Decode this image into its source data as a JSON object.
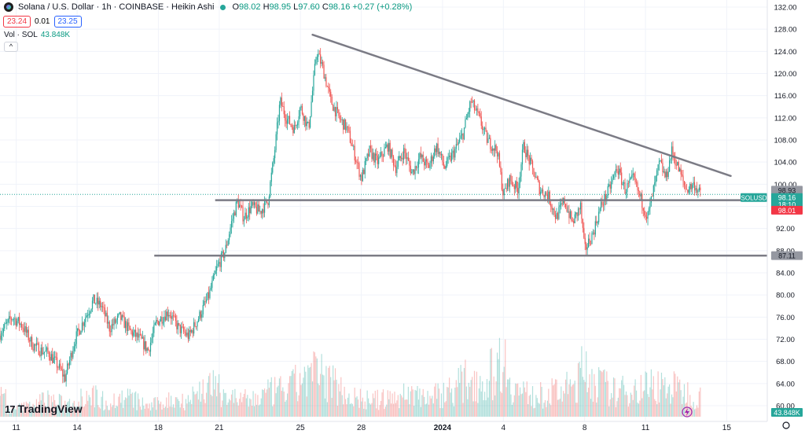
{
  "header": {
    "symbol_title": "Solana / U.S. Dollar · 1h · COINBASE · Heikin Ashi",
    "ohlc": [
      {
        "k": "O",
        "v": "98.02"
      },
      {
        "k": "H",
        "v": "98.95"
      },
      {
        "k": "L",
        "v": "97.60"
      },
      {
        "k": "C",
        "v": "98.16"
      }
    ],
    "change": "+0.27 (+0.28%)",
    "sell_price": "23.24",
    "spread": "0.01",
    "buy_price": "23.25",
    "volume_label": "Vol · SOL",
    "volume_value": "43.848K",
    "collapse_glyph": "^",
    "brand": "TradingView",
    "brand_mark": "17"
  },
  "colors": {
    "up": "#26a69a",
    "down": "#ef5350",
    "line": "#7b7b85",
    "sol_badge": "#26a69a",
    "red_badge": "#f23645",
    "grey_badge": "#9598a1"
  },
  "chart_data": {
    "type": "line",
    "title": "",
    "xlabel": "",
    "ylabel": "",
    "ylim": [
      57.5,
      133
    ],
    "y_ticks": [
      "60.00",
      "64.00",
      "68.00",
      "72.00",
      "76.00",
      "80.00",
      "84.00",
      "88.00",
      "92.00",
      "96.00",
      "100.00",
      "104.00",
      "108.00",
      "112.00",
      "116.00",
      "120.00",
      "124.00",
      "128.00",
      "132.00"
    ],
    "x_ticks": [
      {
        "label": "11",
        "d": 11
      },
      {
        "label": "14",
        "d": 14
      },
      {
        "label": "18",
        "d": 18
      },
      {
        "label": "21",
        "d": 21
      },
      {
        "label": "25",
        "d": 25
      },
      {
        "label": "28",
        "d": 28
      },
      {
        "label": "2024",
        "d": 32
      },
      {
        "label": "4",
        "d": 35
      },
      {
        "label": "8",
        "d": 39
      },
      {
        "label": "11",
        "d": 42
      },
      {
        "label": "15",
        "d": 46
      }
    ],
    "xlim": [
      10.2,
      48.0
    ],
    "series": [
      {
        "values": [
          [
            10.2,
            73
          ],
          [
            10.8,
            76
          ],
          [
            11.3,
            74.5
          ],
          [
            11.8,
            71
          ],
          [
            12.2,
            70
          ],
          [
            12.6,
            69.5
          ],
          [
            13.0,
            67.5
          ],
          [
            13.4,
            65
          ],
          [
            13.9,
            72
          ],
          [
            14.4,
            76
          ],
          [
            14.8,
            79
          ],
          [
            15.2,
            78
          ],
          [
            15.6,
            74
          ],
          [
            16.1,
            76
          ],
          [
            16.6,
            73.5
          ],
          [
            17.1,
            72
          ],
          [
            17.5,
            70
          ],
          [
            17.9,
            75
          ],
          [
            18.5,
            77
          ],
          [
            19.0,
            74
          ],
          [
            19.5,
            72.5
          ],
          [
            20.0,
            76
          ],
          [
            20.5,
            80
          ],
          [
            20.9,
            85
          ],
          [
            21.3,
            88
          ],
          [
            21.6,
            93
          ],
          [
            21.9,
            97
          ],
          [
            22.2,
            94
          ],
          [
            22.6,
            96
          ],
          [
            23.0,
            95
          ],
          [
            23.4,
            97
          ],
          [
            23.7,
            105
          ],
          [
            24.0,
            115
          ],
          [
            24.3,
            112
          ],
          [
            24.7,
            110
          ],
          [
            25.0,
            114
          ],
          [
            25.4,
            110
          ],
          [
            25.8,
            124
          ],
          [
            26.1,
            121
          ],
          [
            26.5,
            115
          ],
          [
            26.9,
            112
          ],
          [
            27.3,
            110
          ],
          [
            27.7,
            105
          ],
          [
            28.0,
            101
          ],
          [
            28.4,
            106
          ],
          [
            28.8,
            104
          ],
          [
            29.3,
            107
          ],
          [
            29.7,
            103
          ],
          [
            30.1,
            106
          ],
          [
            30.5,
            102
          ],
          [
            30.9,
            105
          ],
          [
            31.3,
            103
          ],
          [
            31.7,
            107
          ],
          [
            32.1,
            103
          ],
          [
            32.6,
            106
          ],
          [
            33.0,
            109
          ],
          [
            33.4,
            115
          ],
          [
            33.8,
            112
          ],
          [
            34.2,
            108
          ],
          [
            34.7,
            106
          ],
          [
            35.0,
            98
          ],
          [
            35.3,
            101
          ],
          [
            35.7,
            99
          ],
          [
            36.0,
            107
          ],
          [
            36.4,
            103
          ],
          [
            36.8,
            99
          ],
          [
            37.2,
            98
          ],
          [
            37.6,
            94
          ],
          [
            38.0,
            97
          ],
          [
            38.4,
            93
          ],
          [
            38.8,
            96
          ],
          [
            39.0,
            88
          ],
          [
            39.4,
            91
          ],
          [
            39.8,
            96
          ],
          [
            40.2,
            99
          ],
          [
            40.6,
            103
          ],
          [
            41.0,
            99
          ],
          [
            41.4,
            101
          ],
          [
            41.8,
            97
          ],
          [
            42.1,
            94
          ],
          [
            42.4,
            99
          ],
          [
            42.7,
            104
          ],
          [
            43.0,
            101
          ],
          [
            43.3,
            106
          ],
          [
            43.6,
            103
          ],
          [
            44.0,
            99
          ],
          [
            44.4,
            100
          ],
          [
            44.7,
            98.16
          ]
        ]
      },
      {
        "name": "Vol · SOL",
        "values": [
          [
            10.5,
            3
          ],
          [
            11.5,
            5
          ],
          [
            12.5,
            9
          ],
          [
            13.5,
            6
          ],
          [
            14.5,
            12
          ],
          [
            15.5,
            7
          ],
          [
            16.5,
            10
          ],
          [
            17.5,
            5
          ],
          [
            18.5,
            8
          ],
          [
            19.5,
            9
          ],
          [
            20.5,
            16
          ],
          [
            21.5,
            10
          ],
          [
            22.5,
            8
          ],
          [
            23.5,
            12
          ],
          [
            24.5,
            14
          ],
          [
            25.5,
            22
          ],
          [
            26.5,
            18
          ],
          [
            27.5,
            10
          ],
          [
            28.5,
            8
          ],
          [
            29.5,
            9
          ],
          [
            30.5,
            12
          ],
          [
            31.5,
            10
          ],
          [
            32.5,
            14
          ],
          [
            33.5,
            20
          ],
          [
            34.0,
            16
          ],
          [
            35.0,
            30
          ],
          [
            35.5,
            14
          ],
          [
            36.5,
            10
          ],
          [
            37.5,
            12
          ],
          [
            38.5,
            15
          ],
          [
            39.0,
            25
          ],
          [
            39.5,
            18
          ],
          [
            40.5,
            12
          ],
          [
            41.5,
            14
          ],
          [
            42.5,
            16
          ],
          [
            43.5,
            14
          ],
          [
            44.5,
            10
          ]
        ]
      }
    ],
    "volume_ylim": [
      0,
      36
    ],
    "trendline": [
      [
        25.6,
        127
      ],
      [
        46.2,
        101.5
      ]
    ],
    "horizontal_lines": [
      {
        "y": 97.12,
        "x_from": 20.8
      },
      {
        "y": 87.11,
        "x_from": 17.8
      }
    ],
    "price_badges": [
      {
        "y": 98.93,
        "label": "98.93",
        "kind": "grey"
      },
      {
        "y": 97.6,
        "label": "98.16",
        "sub": "18:10",
        "kind": "sol",
        "symbol": "SOLUSD"
      },
      {
        "y": 95.3,
        "label": "98.01",
        "kind": "red"
      },
      {
        "y": 87.11,
        "label": "87.11",
        "kind": "grey"
      }
    ],
    "volume_badge": "43.848K",
    "current_price": 98.16
  }
}
